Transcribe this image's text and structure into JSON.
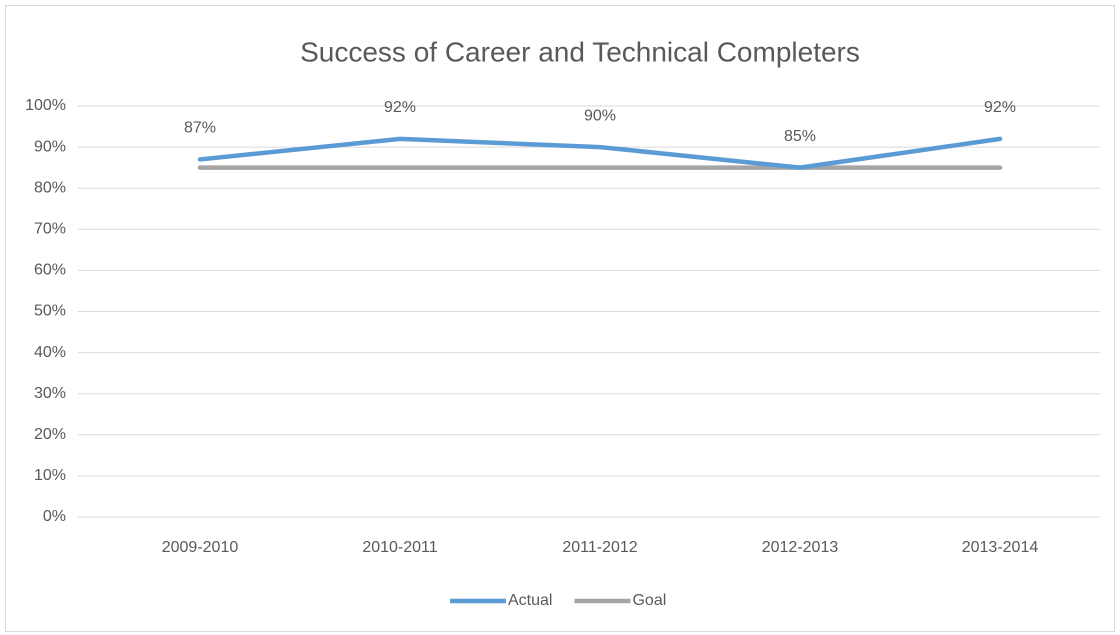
{
  "chart_data": {
    "type": "line",
    "title": "Success of Career and Technical Completers",
    "categories": [
      "2009-2010",
      "2010-2011",
      "2011-2012",
      "2012-2013",
      "2013-2014"
    ],
    "series": [
      {
        "name": "Actual",
        "color": "#5b9bd5",
        "values": [
          87,
          92,
          90,
          85,
          92
        ],
        "value_labels": [
          "87%",
          "92%",
          "90%",
          "85%",
          "92%"
        ]
      },
      {
        "name": "Goal",
        "color": "#a5a5a5",
        "values": [
          85,
          85,
          85,
          85,
          85
        ]
      }
    ],
    "ylim": [
      0,
      100
    ],
    "yticks": [
      {
        "value": 0,
        "label": "0%"
      },
      {
        "value": 10,
        "label": "10%"
      },
      {
        "value": 20,
        "label": "20%"
      },
      {
        "value": 30,
        "label": "30%"
      },
      {
        "value": 40,
        "label": "40%"
      },
      {
        "value": 50,
        "label": "50%"
      },
      {
        "value": 60,
        "label": "60%"
      },
      {
        "value": 70,
        "label": "70%"
      },
      {
        "value": 80,
        "label": "80%"
      },
      {
        "value": 90,
        "label": "90%"
      },
      {
        "value": 100,
        "label": "100%"
      }
    ],
    "grid": true,
    "legend": "bottom"
  }
}
